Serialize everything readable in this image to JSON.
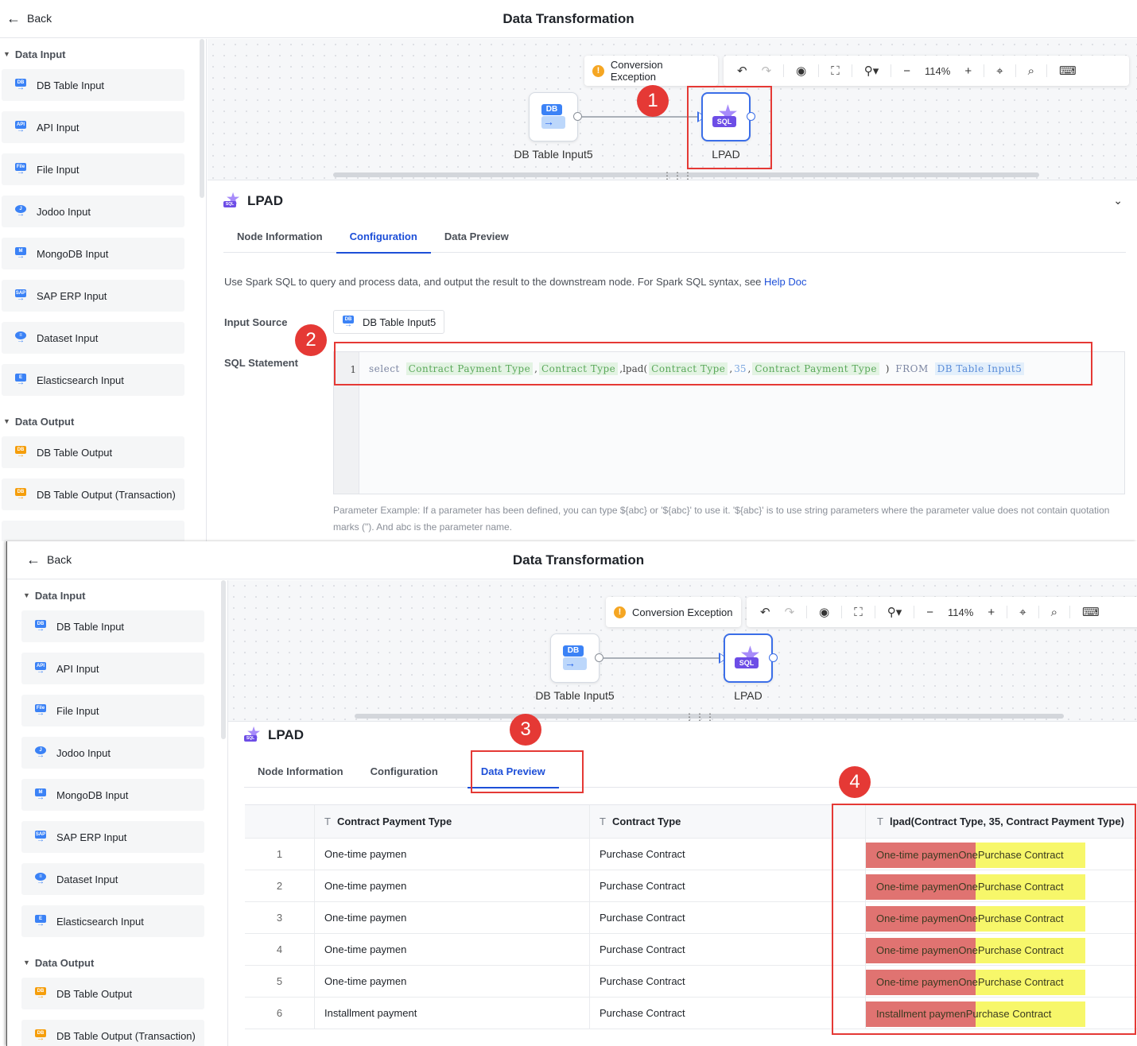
{
  "window": {
    "title": "Data Transformation",
    "back_label": "Back"
  },
  "sidebar": {
    "input_section": "Data Input",
    "output_section": "Data Output",
    "inputs": [
      {
        "label": "DB Table Input",
        "icon": "db-table-icon",
        "color": "#3b82f6",
        "tag": "DB"
      },
      {
        "label": "API Input",
        "icon": "api-icon",
        "color": "#3b82f6",
        "tag": "API"
      },
      {
        "label": "File Input",
        "icon": "file-icon",
        "color": "#3b82f6",
        "tag": "File"
      },
      {
        "label": "Jodoo Input",
        "icon": "jodoo-icon",
        "color": "#3b82f6",
        "tag": "J"
      },
      {
        "label": "MongoDB Input",
        "icon": "mongodb-icon",
        "color": "#3b82f6",
        "tag": "M"
      },
      {
        "label": "SAP ERP Input",
        "icon": "sap-icon",
        "color": "#3b82f6",
        "tag": "SAP"
      },
      {
        "label": "Dataset Input",
        "icon": "dataset-icon",
        "color": "#3b82f6",
        "tag": "DS"
      },
      {
        "label": "Elasticsearch Input",
        "icon": "elasticsearch-icon",
        "color": "#3b82f6",
        "tag": "E"
      }
    ],
    "outputs": [
      {
        "label": "DB Table Output",
        "icon": "db-table-output-icon",
        "color": "#f59e0b",
        "tag": "DB"
      },
      {
        "label": "DB Table Output (Transaction)",
        "icon": "db-table-transaction-icon",
        "color": "#f59e0b",
        "tag": "DB"
      }
    ]
  },
  "canvas": {
    "exception_label": "Conversion Exception",
    "zoom": "114%",
    "source_node": "DB Table Input5",
    "target_node": "LPAD",
    "source_tag": "DB",
    "target_tag": "SQL"
  },
  "panel": {
    "title": "LPAD",
    "tabs": [
      "Node Information",
      "Configuration",
      "Data Preview"
    ],
    "description": "Use Spark SQL to query and process data, and output the result to the downstream node. For Spark SQL syntax, see",
    "help_link": "Help Doc",
    "input_source_label": "Input Source",
    "input_source_value": "DB Table Input5",
    "sql_label": "SQL Statement",
    "sql": {
      "line_no": "1",
      "select": "select",
      "f1": "Contract Payment Type",
      "comma": ",",
      "f2": "Contract Type",
      "lpad": ",lpad(",
      "f3": "Contract Type",
      "num": "35",
      "f4": "Contract Payment Type",
      "close": ")",
      "from": "FROM",
      "table": "DB Table Input5"
    },
    "hint": "Parameter Example: If a parameter has been defined, you can type ${abc} or '${abc}' to use it. '${abc}' is to use string parameters where the parameter value does not contain quotation marks (\"). And abc is the parameter name."
  },
  "preview": {
    "columns": [
      "Contract Payment Type",
      "Contract Type",
      "lpad(Contract Type, 35, Contract Payment Type)"
    ],
    "rows": [
      {
        "n": "1",
        "c1": "One-time paymen",
        "c2": "Purchase Contract",
        "c3": "One-time paymenOnePurchase Contract"
      },
      {
        "n": "2",
        "c1": "One-time paymen",
        "c2": "Purchase Contract",
        "c3": "One-time paymenOnePurchase Contract"
      },
      {
        "n": "3",
        "c1": "One-time paymen",
        "c2": "Purchase Contract",
        "c3": "One-time paymenOnePurchase Contract"
      },
      {
        "n": "4",
        "c1": "One-time paymen",
        "c2": "Purchase Contract",
        "c3": "One-time paymenOnePurchase Contract"
      },
      {
        "n": "5",
        "c1": "One-time paymen",
        "c2": "Purchase Contract",
        "c3": "One-time paymenOnePurchase Contract"
      },
      {
        "n": "6",
        "c1": "Installment payment",
        "c2": "Purchase Contract",
        "c3": "Installment paymenPurchase Contract"
      }
    ]
  },
  "annotations": [
    "1",
    "2",
    "3",
    "4"
  ],
  "colors": {
    "accent": "#1d4fd8",
    "annotation": "#e53935",
    "highlight_red": "#e07371",
    "highlight_yellow": "#f7f76a"
  }
}
